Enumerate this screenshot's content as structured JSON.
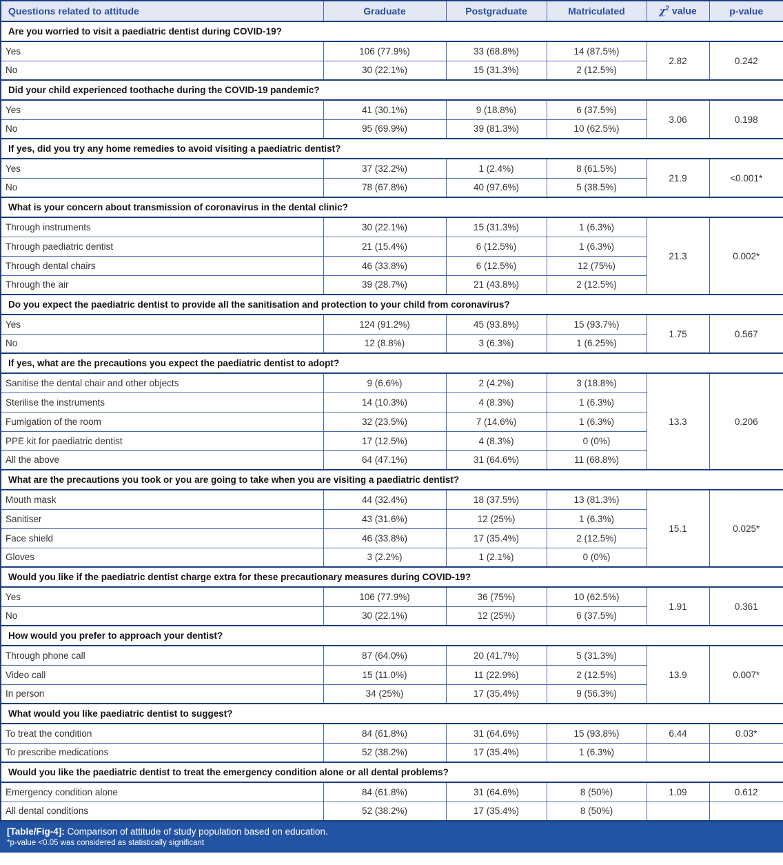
{
  "header": {
    "questions": "Questions related to attitude",
    "graduate": "Graduate",
    "postgraduate": "Postgraduate",
    "matriculated": "Matriculated",
    "chi": {
      "symbol": "χ",
      "sup": "2",
      "rest": " value"
    },
    "pvalue": "p-value"
  },
  "sections": [
    {
      "question": "Are you worried to visit a paediatric dentist during COVID-19?",
      "rows": [
        {
          "label": "Yes",
          "graduate": "106 (77.9%)",
          "postgraduate": "33 (68.8%)",
          "matriculated": "14 (87.5%)"
        },
        {
          "label": "No",
          "graduate": "30 (22.1%)",
          "postgraduate": "15 (31.3%)",
          "matriculated": "2 (12.5%)"
        }
      ],
      "chi2": "2.82",
      "p": "0.242",
      "stats": "merged"
    },
    {
      "question": "Did your child experienced toothache during the COVID-19 pandemic?",
      "rows": [
        {
          "label": "Yes",
          "graduate": "41 (30.1%)",
          "postgraduate": "9 (18.8%)",
          "matriculated": "6 (37.5%)"
        },
        {
          "label": "No",
          "graduate": "95 (69.9%)",
          "postgraduate": "39 (81.3%)",
          "matriculated": "10 (62.5%)"
        }
      ],
      "chi2": "3.06",
      "p": "0.198",
      "stats": "merged"
    },
    {
      "question": "If yes, did you try any home remedies to avoid visiting a paediatric dentist?",
      "rows": [
        {
          "label": "Yes",
          "graduate": "37 (32.2%)",
          "postgraduate": "1 (2.4%)",
          "matriculated": "8 (61.5%)"
        },
        {
          "label": "No",
          "graduate": "78 (67.8%)",
          "postgraduate": "40 (97.6%)",
          "matriculated": "5 (38.5%)"
        }
      ],
      "chi2": "21.9",
      "p": "<0.001*",
      "stats": "merged"
    },
    {
      "question": "What is your concern about transmission of coronavirus in the dental clinic?",
      "rows": [
        {
          "label": "Through instruments",
          "graduate": "30 (22.1%)",
          "postgraduate": "15 (31.3%)",
          "matriculated": "1 (6.3%)"
        },
        {
          "label": "Through paediatric dentist",
          "graduate": "21 (15.4%)",
          "postgraduate": "6 (12.5%)",
          "matriculated": "1 (6.3%)"
        },
        {
          "label": "Through dental chairs",
          "graduate": "46 (33.8%)",
          "postgraduate": "6 (12.5%)",
          "matriculated": "12 (75%)"
        },
        {
          "label": "Through the air",
          "graduate": "39 (28.7%)",
          "postgraduate": "21 (43.8%)",
          "matriculated": "2 (12.5%)"
        }
      ],
      "chi2": "21.3",
      "p": "0.002*",
      "stats": "merged"
    },
    {
      "question": "Do you expect the paediatric dentist to provide all the sanitisation and protection to your child from coronavirus?",
      "rows": [
        {
          "label": "Yes",
          "graduate": "124 (91.2%)",
          "postgraduate": "45 (93.8%)",
          "matriculated": "15 (93.7%)"
        },
        {
          "label": "No",
          "graduate": "12 (8.8%)",
          "postgraduate": "3 (6.3%)",
          "matriculated": "1 (6.25%)"
        }
      ],
      "chi2": "1.75",
      "p": "0.567",
      "stats": "merged"
    },
    {
      "question": "If yes, what are the precautions you expect the paediatric dentist to adopt?",
      "rows": [
        {
          "label": "Sanitise the dental chair and other objects",
          "graduate": "9 (6.6%)",
          "postgraduate": "2 (4.2%)",
          "matriculated": "3 (18.8%)"
        },
        {
          "label": "Sterilise the instruments",
          "graduate": "14 (10.3%)",
          "postgraduate": "4 (8.3%)",
          "matriculated": "1 (6.3%)"
        },
        {
          "label": "Fumigation of the room",
          "graduate": "32 (23.5%)",
          "postgraduate": "7 (14.6%)",
          "matriculated": "1 (6.3%)"
        },
        {
          "label": "PPE kit for paediatric dentist",
          "graduate": "17 (12.5%)",
          "postgraduate": "4 (8.3%)",
          "matriculated": "0 (0%)"
        },
        {
          "label": "All the above",
          "graduate": "64 (47.1%)",
          "postgraduate": "31 (64.6%)",
          "matriculated": "11 (68.8%)"
        }
      ],
      "chi2": "13.3",
      "p": "0.206",
      "stats": "merged"
    },
    {
      "question": "What are the precautions you took or you are going to take when you are visiting a paediatric dentist?",
      "rows": [
        {
          "label": "Mouth mask",
          "graduate": "44 (32.4%)",
          "postgraduate": "18 (37.5%)",
          "matriculated": "13 (81.3%)"
        },
        {
          "label": "Sanitiser",
          "graduate": "43 (31.6%)",
          "postgraduate": "12 (25%)",
          "matriculated": "1 (6.3%)"
        },
        {
          "label": "Face shield",
          "graduate": "46 (33.8%)",
          "postgraduate": "17 (35.4%)",
          "matriculated": "2 (12.5%)"
        },
        {
          "label": "Gloves",
          "graduate": "3 (2.2%)",
          "postgraduate": "1 (2.1%)",
          "matriculated": "0 (0%)"
        }
      ],
      "chi2": "15.1",
      "p": "0.025*",
      "stats": "merged"
    },
    {
      "question": "Would you like if the paediatric dentist charge extra for these precautionary measures during COVID-19?",
      "rows": [
        {
          "label": "Yes",
          "graduate": "106 (77.9%)",
          "postgraduate": "36 (75%)",
          "matriculated": "10 (62.5%)"
        },
        {
          "label": "No",
          "graduate": "30 (22.1%)",
          "postgraduate": "12 (25%)",
          "matriculated": "6 (37.5%)"
        }
      ],
      "chi2": "1.91",
      "p": "0.361",
      "stats": "merged"
    },
    {
      "question": "How would you prefer to approach your dentist?",
      "rows": [
        {
          "label": "Through phone call",
          "graduate": "87 (64.0%)",
          "postgraduate": "20 (41.7%)",
          "matriculated": "5 (31.3%)"
        },
        {
          "label": "Video call",
          "graduate": "15 (11.0%)",
          "postgraduate": "11 (22.9%)",
          "matriculated": "2 (12.5%)"
        },
        {
          "label": "In person",
          "graduate": "34 (25%)",
          "postgraduate": "17 (35.4%)",
          "matriculated": "9 (56.3%)"
        }
      ],
      "chi2": "13.9",
      "p": "0.007*",
      "stats": "merged"
    },
    {
      "question": "What would you like paediatric dentist to suggest?",
      "rows": [
        {
          "label": "To treat the condition",
          "graduate": "84 (61.8%)",
          "postgraduate": "31 (64.6%)",
          "matriculated": "15 (93.8%)"
        },
        {
          "label": "To prescribe medications",
          "graduate": "52 (38.2%)",
          "postgraduate": "17 (35.4%)",
          "matriculated": "1 (6.3%)"
        }
      ],
      "chi2": "6.44",
      "p": "0.03*",
      "stats": "first-row"
    },
    {
      "question": "Would you like the paediatric dentist to treat the emergency condition alone or all dental problems?",
      "rows": [
        {
          "label": "Emergency condition alone",
          "graduate": "84 (61.8%)",
          "postgraduate": "31 (64.6%)",
          "matriculated": "8 (50%)"
        },
        {
          "label": "All dental conditions",
          "graduate": "52 (38.2%)",
          "postgraduate": "17 (35.4%)",
          "matriculated": "8 (50%)"
        }
      ],
      "chi2": "1.09",
      "p": "0.612",
      "stats": "first-row"
    }
  ],
  "footer": {
    "label": "[Table/Fig-4]:",
    "caption": " Comparison of attitude of study population based on education.",
    "note": "*p-value <0.05 was considered as statistically significant"
  },
  "colors": {
    "header_bg": "#e4e8f4",
    "header_text": "#2a4fa2",
    "border_thin": "#4a67ad",
    "border_thick": "#1c3e7d",
    "caption_bg": "#2353a3",
    "caption_text": "#ffffff"
  }
}
